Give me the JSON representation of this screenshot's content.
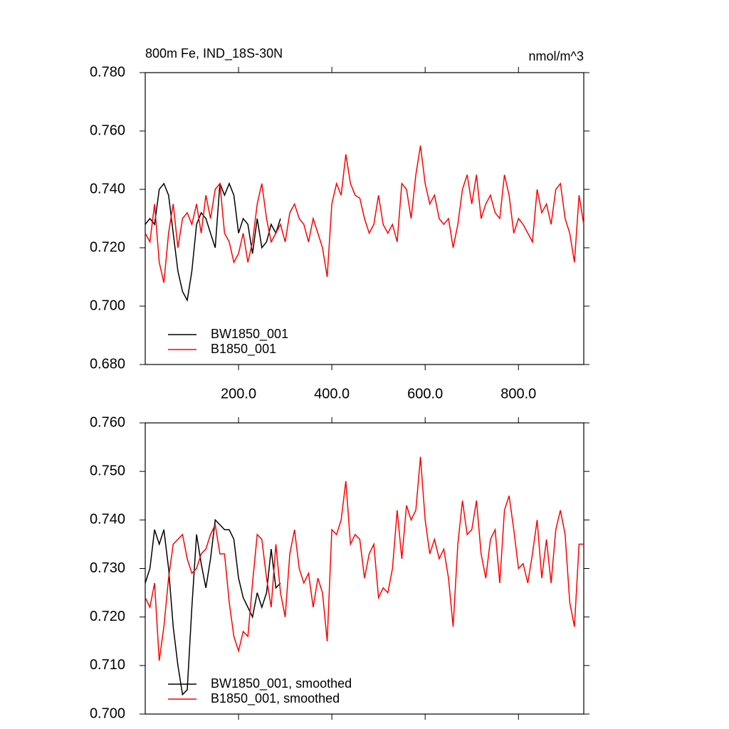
{
  "chart_data": [
    {
      "type": "line",
      "title": "800m Fe, IND_18S-30N",
      "units_label": "nmol/m^3",
      "x": [
        0,
        10,
        20,
        30,
        40,
        50,
        60,
        70,
        80,
        90,
        100,
        110,
        120,
        130,
        140,
        150,
        160,
        170,
        180,
        190,
        200,
        210,
        220,
        230,
        240,
        250,
        260,
        270,
        280,
        290,
        300,
        310,
        320,
        330,
        340,
        350,
        360,
        370,
        380,
        390,
        400,
        410,
        420,
        430,
        440,
        450,
        460,
        470,
        480,
        490,
        500,
        510,
        520,
        530,
        540,
        550,
        560,
        570,
        580,
        590,
        600,
        610,
        620,
        630,
        640,
        650,
        660,
        670,
        680,
        690,
        700,
        710,
        720,
        730,
        740,
        750,
        760,
        770,
        780,
        790,
        800,
        810,
        820,
        830,
        840,
        850,
        860,
        870,
        880,
        890,
        900,
        910,
        920,
        930,
        940
      ],
      "series": [
        {
          "name": "BW1850_001",
          "color": "#000000",
          "values": [
            0.728,
            0.73,
            0.728,
            0.74,
            0.742,
            0.738,
            0.725,
            0.712,
            0.705,
            0.702,
            0.712,
            0.728,
            0.732,
            0.73,
            0.725,
            0.72,
            0.742,
            0.738,
            0.742,
            0.738,
            0.725,
            0.73,
            0.728,
            0.718,
            0.73,
            0.72,
            0.722,
            0.728,
            0.725,
            0.73,
            null,
            null,
            null,
            null,
            null,
            null,
            null,
            null,
            null,
            null,
            null,
            null,
            null,
            null,
            null,
            null,
            null,
            null,
            null,
            null,
            null,
            null,
            null,
            null,
            null,
            null,
            null,
            null,
            null,
            null,
            null,
            null,
            null,
            null,
            null,
            null,
            null,
            null,
            null,
            null,
            null,
            null,
            null,
            null,
            null,
            null,
            null,
            null,
            null,
            null,
            null,
            null,
            null,
            null,
            null,
            null,
            null,
            null,
            null,
            null,
            null,
            null,
            null,
            null,
            null
          ]
        },
        {
          "name": "B1850_001",
          "color": "#ff0000",
          "values": [
            0.725,
            0.722,
            0.735,
            0.715,
            0.708,
            0.725,
            0.735,
            0.72,
            0.73,
            0.732,
            0.728,
            0.735,
            0.725,
            0.738,
            0.73,
            0.74,
            0.742,
            0.725,
            0.722,
            0.715,
            0.718,
            0.725,
            0.715,
            0.722,
            0.735,
            0.742,
            0.73,
            0.722,
            0.725,
            0.728,
            0.722,
            0.732,
            0.735,
            0.73,
            0.728,
            0.722,
            0.73,
            0.725,
            0.72,
            0.71,
            0.735,
            0.742,
            0.738,
            0.752,
            0.742,
            0.738,
            0.737,
            0.73,
            0.725,
            0.728,
            0.738,
            0.728,
            0.725,
            0.728,
            0.722,
            0.742,
            0.74,
            0.73,
            0.745,
            0.755,
            0.742,
            0.735,
            0.738,
            0.73,
            0.728,
            0.73,
            0.72,
            0.728,
            0.74,
            0.745,
            0.735,
            0.745,
            0.73,
            0.735,
            0.738,
            0.732,
            0.73,
            0.745,
            0.738,
            0.725,
            0.73,
            0.728,
            0.725,
            0.722,
            0.74,
            0.732,
            0.735,
            0.728,
            0.74,
            0.742,
            0.73,
            0.725,
            0.715,
            0.738,
            0.728
          ]
        }
      ],
      "xlim": [
        0,
        940
      ],
      "xticks": [
        {
          "value": 200,
          "label": "200.0"
        },
        {
          "value": 400,
          "label": "400.0"
        },
        {
          "value": 600,
          "label": "600.0"
        },
        {
          "value": 800,
          "label": "800.0"
        }
      ],
      "ylim": [
        0.68,
        0.78
      ],
      "yticks": [
        {
          "value": 0.68,
          "label": "0.680"
        },
        {
          "value": 0.7,
          "label": "0.700"
        },
        {
          "value": 0.72,
          "label": "0.720"
        },
        {
          "value": 0.74,
          "label": "0.740"
        },
        {
          "value": 0.76,
          "label": "0.760"
        },
        {
          "value": 0.78,
          "label": "0.780"
        }
      ],
      "legend": "lower left"
    },
    {
      "type": "line",
      "x": [
        0,
        10,
        20,
        30,
        40,
        50,
        60,
        70,
        80,
        90,
        100,
        110,
        120,
        130,
        140,
        150,
        160,
        170,
        180,
        190,
        200,
        210,
        220,
        230,
        240,
        250,
        260,
        270,
        280,
        290,
        300,
        310,
        320,
        330,
        340,
        350,
        360,
        370,
        380,
        390,
        400,
        410,
        420,
        430,
        440,
        450,
        460,
        470,
        480,
        490,
        500,
        510,
        520,
        530,
        540,
        550,
        560,
        570,
        580,
        590,
        600,
        610,
        620,
        630,
        640,
        650,
        660,
        670,
        680,
        690,
        700,
        710,
        720,
        730,
        740,
        750,
        760,
        770,
        780,
        790,
        800,
        810,
        820,
        830,
        840,
        850,
        860,
        870,
        880,
        890,
        900,
        910,
        920,
        930,
        940
      ],
      "series": [
        {
          "name": "BW1850_001, smoothed",
          "color": "#000000",
          "values": [
            0.727,
            0.73,
            0.738,
            0.735,
            0.738,
            0.73,
            0.718,
            0.71,
            0.704,
            0.705,
            0.722,
            0.737,
            0.731,
            0.726,
            0.732,
            0.74,
            0.739,
            0.738,
            0.738,
            0.736,
            0.728,
            0.724,
            0.722,
            0.72,
            0.725,
            0.722,
            0.725,
            0.734,
            0.726,
            0.727,
            null,
            null,
            null,
            null,
            null,
            null,
            null,
            null,
            null,
            null,
            null,
            null,
            null,
            null,
            null,
            null,
            null,
            null,
            null,
            null,
            null,
            null,
            null,
            null,
            null,
            null,
            null,
            null,
            null,
            null,
            null,
            null,
            null,
            null,
            null,
            null,
            null,
            null,
            null,
            null,
            null,
            null,
            null,
            null,
            null,
            null,
            null,
            null,
            null,
            null,
            null,
            null,
            null,
            null,
            null,
            null,
            null,
            null,
            null,
            null,
            null,
            null,
            null,
            null,
            null
          ]
        },
        {
          "name": "B1850_001, smoothed",
          "color": "#ff0000",
          "values": [
            0.724,
            0.722,
            0.727,
            0.711,
            0.718,
            0.728,
            0.735,
            0.736,
            0.737,
            0.732,
            0.729,
            0.73,
            0.733,
            0.734,
            0.737,
            0.739,
            0.733,
            0.733,
            0.723,
            0.716,
            0.713,
            0.717,
            0.716,
            0.727,
            0.737,
            0.736,
            0.728,
            0.722,
            0.735,
            0.725,
            0.72,
            0.733,
            0.738,
            0.73,
            0.727,
            0.729,
            0.722,
            0.728,
            0.725,
            0.715,
            0.738,
            0.737,
            0.74,
            0.748,
            0.735,
            0.737,
            0.736,
            0.728,
            0.733,
            0.735,
            0.724,
            0.726,
            0.725,
            0.73,
            0.742,
            0.732,
            0.743,
            0.74,
            0.742,
            0.753,
            0.74,
            0.733,
            0.736,
            0.732,
            0.734,
            0.728,
            0.718,
            0.735,
            0.744,
            0.737,
            0.738,
            0.744,
            0.733,
            0.728,
            0.736,
            0.738,
            0.727,
            0.742,
            0.745,
            0.738,
            0.73,
            0.731,
            0.727,
            0.733,
            0.74,
            0.728,
            0.736,
            0.727,
            0.738,
            0.742,
            0.737,
            0.723,
            0.718,
            0.735,
            0.735
          ]
        }
      ],
      "xlim": [
        0,
        940
      ],
      "xticks": [
        200,
        400,
        600,
        800
      ],
      "ylim": [
        0.7,
        0.76
      ],
      "yticks": [
        {
          "value": 0.7,
          "label": "0.700"
        },
        {
          "value": 0.71,
          "label": "0.710"
        },
        {
          "value": 0.72,
          "label": "0.720"
        },
        {
          "value": 0.73,
          "label": "0.730"
        },
        {
          "value": 0.74,
          "label": "0.740"
        },
        {
          "value": 0.75,
          "label": "0.750"
        },
        {
          "value": 0.76,
          "label": "0.760"
        }
      ],
      "legend": "lower left"
    }
  ]
}
